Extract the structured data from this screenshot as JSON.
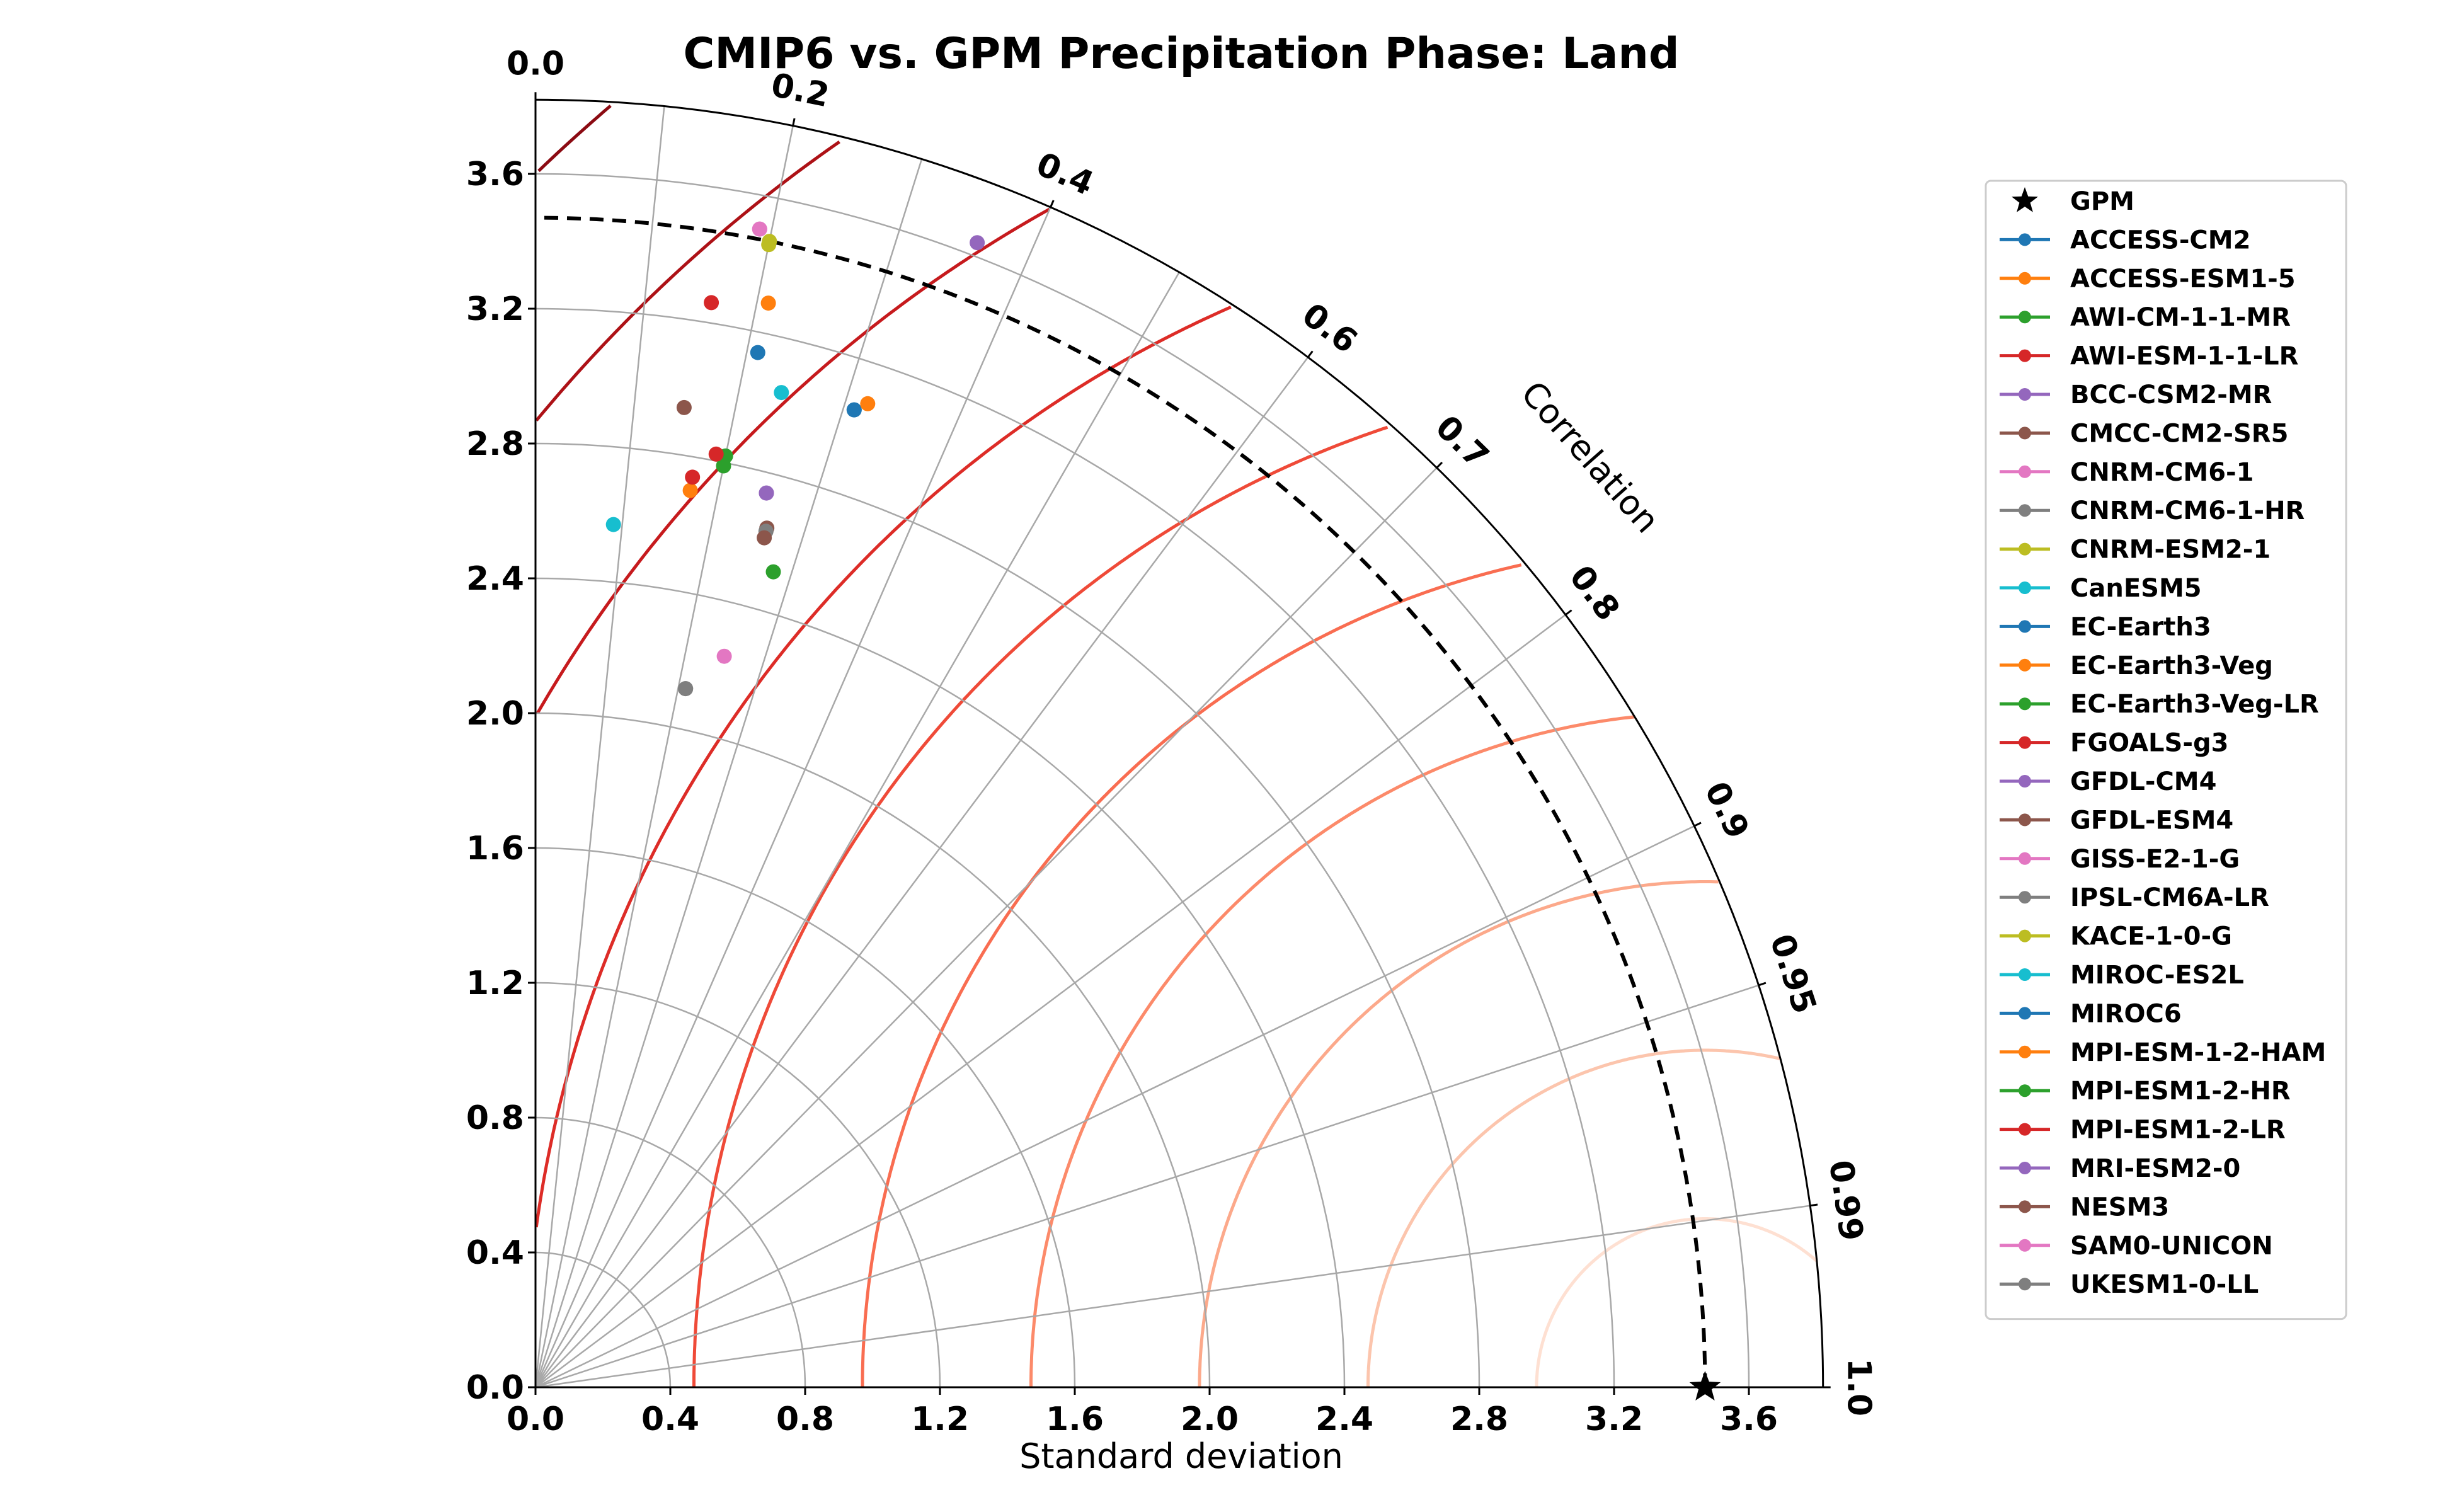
{
  "chart_data": {
    "type": "scatter",
    "subtype": "taylor-diagram",
    "title": "CMIP6 vs. GPM Precipitation Phase: Land",
    "xlabel": "Standard deviation",
    "angular_label": "Correlation",
    "std_range": [
      0,
      3.82
    ],
    "std_ticks": [
      "0.0",
      "0.4",
      "0.8",
      "1.2",
      "1.6",
      "2.0",
      "2.4",
      "2.8",
      "3.2",
      "3.6"
    ],
    "correlation_ticks": [
      {
        "value": 0.0,
        "label": "0.0"
      },
      {
        "value": 0.2,
        "label": "0.2"
      },
      {
        "value": 0.4,
        "label": "0.4"
      },
      {
        "value": 0.6,
        "label": "0.6"
      },
      {
        "value": 0.7,
        "label": "0.7"
      },
      {
        "value": 0.8,
        "label": "0.8"
      },
      {
        "value": 0.9,
        "label": "0.9"
      },
      {
        "value": 0.95,
        "label": "0.95"
      },
      {
        "value": 0.99,
        "label": "0.99"
      },
      {
        "value": 1.0,
        "label": "1.0"
      }
    ],
    "correlation_gridlines": [
      0.1,
      0.2,
      0.3,
      0.4,
      0.5,
      0.6,
      0.7,
      0.8,
      0.9,
      0.95,
      0.99
    ],
    "std_gridlines": [
      0.4,
      0.8,
      1.2,
      1.6,
      2.0,
      2.4,
      2.8,
      3.2,
      3.6
    ],
    "rmsd_contours": [
      0.5,
      1.0,
      1.5,
      2.0,
      2.5,
      3.0,
      3.5,
      4.0,
      4.5,
      5.0
    ],
    "rmsd_colors": [
      "#fee0d2",
      "#fcc5ad",
      "#fca98b",
      "#fc8a6a",
      "#f96d51",
      "#ef4a38",
      "#dd2c27",
      "#c61a1d",
      "#ad1116",
      "#8b0a12"
    ],
    "grid": true,
    "legend_position": "right",
    "reference": {
      "name": "GPM",
      "std": 3.47,
      "correlation": 1.0,
      "marker": "star",
      "color": "#000000"
    },
    "reference_arc_style": "dashed",
    "series": [
      {
        "name": "ACCESS-CM2",
        "color": "#1f77b4",
        "std": 3.14,
        "correlation": 0.21
      },
      {
        "name": "ACCESS-ESM1-5",
        "color": "#ff7f0e",
        "std": 3.29,
        "correlation": 0.21
      },
      {
        "name": "AWI-CM-1-1-MR",
        "color": "#2ca02c",
        "std": 2.52,
        "correlation": 0.28
      },
      {
        "name": "AWI-ESM-1-1-LR",
        "color": "#d62728",
        "std": 3.26,
        "correlation": 0.16
      },
      {
        "name": "BCC-CSM2-MR",
        "color": "#9467bd",
        "std": 3.64,
        "correlation": 0.36
      },
      {
        "name": "CMCC-CM2-SR5",
        "color": "#8c564b",
        "std": 2.94,
        "correlation": 0.15
      },
      {
        "name": "CNRM-CM6-1",
        "color": "#e377c2",
        "std": 3.5,
        "correlation": 0.19
      },
      {
        "name": "CNRM-CM6-1-HR",
        "color": "#7f7f7f",
        "std": 2.12,
        "correlation": 0.21
      },
      {
        "name": "CNRM-ESM2-1",
        "color": "#bcbd22",
        "std": 3.46,
        "correlation": 0.2
      },
      {
        "name": "CanESM5",
        "color": "#17becf",
        "std": 2.57,
        "correlation": 0.09
      },
      {
        "name": "EC-Earth3",
        "color": "#1f77b4",
        "std": 3.05,
        "correlation": 0.31
      },
      {
        "name": "EC-Earth3-Veg",
        "color": "#ff7f0e",
        "std": 2.7,
        "correlation": 0.17
      },
      {
        "name": "EC-Earth3-Veg-LR",
        "color": "#2ca02c",
        "std": 2.82,
        "correlation": 0.2
      },
      {
        "name": "FGOALS-g3",
        "color": "#d62728",
        "std": 2.74,
        "correlation": 0.17
      },
      {
        "name": "GFDL-CM4",
        "color": "#9467bd",
        "std": 2.74,
        "correlation": 0.25
      },
      {
        "name": "GFDL-ESM4",
        "color": "#8c564b",
        "std": 2.64,
        "correlation": 0.26
      },
      {
        "name": "GISS-E2-1-G",
        "color": "#e377c2",
        "std": 2.24,
        "correlation": 0.25
      },
      {
        "name": "IPSL-CM6A-LR",
        "color": "#7f7f7f",
        "std": 2.63,
        "correlation": 0.26
      },
      {
        "name": "KACE-1-0-G",
        "color": "#bcbd22",
        "std": 3.47,
        "correlation": 0.2
      },
      {
        "name": "MIROC-ES2L",
        "color": "#17becf",
        "std": 3.04,
        "correlation": 0.24
      },
      {
        "name": "MIROC6",
        "color": "#1f77b4",
        "std": 3.05,
        "correlation": 0.31
      },
      {
        "name": "MPI-ESM-1-2-HAM",
        "color": "#ff7f0e",
        "std": 3.08,
        "correlation": 0.32
      },
      {
        "name": "MPI-ESM1-2-HR",
        "color": "#2ca02c",
        "std": 2.79,
        "correlation": 0.2
      },
      {
        "name": "MPI-ESM1-2-LR",
        "color": "#d62728",
        "std": 2.82,
        "correlation": 0.19
      },
      {
        "name": "MRI-ESM2-0",
        "color": "#9467bd",
        "std": 2.74,
        "correlation": 0.25
      },
      {
        "name": "NESM3",
        "color": "#8c564b",
        "std": 2.61,
        "correlation": 0.26
      },
      {
        "name": "SAM0-UNICON",
        "color": "#e377c2",
        "std": 3.5,
        "correlation": 0.19
      },
      {
        "name": "UKESM1-0-LL",
        "color": "#7f7f7f",
        "std": 2.12,
        "correlation": 0.21
      }
    ]
  }
}
